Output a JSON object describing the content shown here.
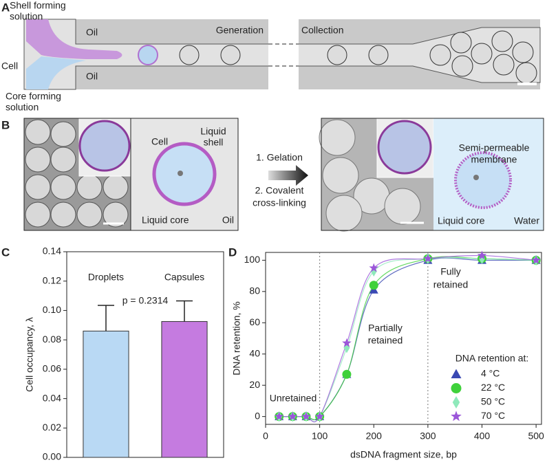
{
  "panels": [
    {
      "label": "A",
      "texts": {
        "shell": [
          "Shell forming",
          "solution"
        ],
        "cell": "Cell",
        "core": [
          "Core forming",
          "solution"
        ],
        "oil_top": "Oil",
        "oil_bottom": "Oil",
        "generation": "Generation",
        "collection": "Collection"
      }
    },
    {
      "label": "B",
      "texts": {
        "cell": "Cell",
        "shell": [
          "Liquid",
          "shell"
        ],
        "core_left": "Liquid core",
        "oil": "Oil",
        "step1": "1. Gelation",
        "step2": [
          "2. Covalent",
          "cross-linking"
        ],
        "membrane": [
          "Semi-permeable",
          "membrane"
        ],
        "core_right": "Liquid core",
        "water": "Water"
      }
    }
  ],
  "chart_data": [
    {
      "type": "bar",
      "panel_label": "C",
      "y_label": "Cell occupancy, λ",
      "annotation": "p = 0.2314",
      "categories": [
        "Droplets",
        "Capsules"
      ],
      "values": [
        0.086,
        0.0925
      ],
      "errors": [
        0.0175,
        0.014
      ],
      "colors": [
        "#b9d9f4",
        "#c57be0"
      ],
      "ylim": [
        0,
        0.14
      ],
      "yticks": [
        {
          "value": 0,
          "label": "0.00"
        },
        0.02,
        0.04,
        0.06,
        0.08,
        {
          "value": 0.1,
          "label": "0.10"
        },
        0.12,
        0.14
      ]
    },
    {
      "type": "scatter",
      "panel_label": "D",
      "x_label": "dsDNA fragment size, bp",
      "y_label": "DNA retention, %",
      "annotations": [
        "Unretained",
        [
          "Partially",
          "retained"
        ],
        [
          "Fully",
          "retained"
        ]
      ],
      "legend_title": "DNA retention at:",
      "legend_position": "lower right",
      "vlines": [
        100,
        300
      ],
      "x": [
        25,
        50,
        75,
        100,
        150,
        200,
        300,
        400,
        500
      ],
      "series": [
        {
          "name": "4 °C",
          "color": "#3a49b3",
          "marker": "triangle",
          "values": [
            0,
            0,
            0,
            0,
            27,
            81,
            100,
            100,
            100
          ]
        },
        {
          "name": "22 °C",
          "color": "#3fd13b",
          "marker": "circle",
          "values": [
            0,
            0,
            0,
            0,
            27,
            84,
            101,
            101,
            100
          ]
        },
        {
          "name": "50 °C",
          "color": "#8fe9bb",
          "marker": "diamond",
          "values": [
            0,
            0,
            0,
            0,
            44,
            93,
            101,
            101,
            100
          ]
        },
        {
          "name": "70 °C",
          "color": "#9b56d9",
          "marker": "star",
          "values": [
            0,
            0,
            0,
            0,
            47,
            95,
            101,
            103,
            100
          ]
        }
      ],
      "xlim": [
        0,
        510
      ],
      "xticks": [
        0,
        100,
        200,
        300,
        400,
        500
      ],
      "ylim": [
        -5,
        105
      ],
      "yticks": [
        0,
        20,
        40,
        60,
        80,
        100
      ]
    }
  ]
}
